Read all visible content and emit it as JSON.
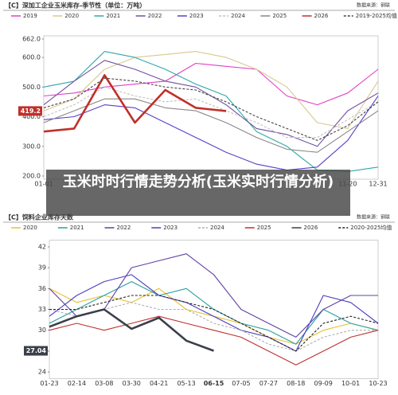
{
  "overlay_title": "玉米时时行情走势分析(玉米实时行情分析)",
  "chart_data": [
    {
      "type": "line",
      "title": "【C】深加工企业玉米库存-季节性（单位：万吨）",
      "source": "数据来源：钢联",
      "categories": [
        "01-01",
        null,
        null,
        null,
        null,
        null,
        null,
        null,
        null,
        null,
        "11-20",
        "12-31"
      ],
      "ylim": [
        200,
        662
      ],
      "yticks": [
        {
          "value": 200,
          "label": "200.0"
        },
        {
          "value": 300,
          "label": "300.0"
        },
        {
          "value": 400,
          "label": "400.0"
        },
        {
          "value": 500,
          "label": "500.0"
        },
        {
          "value": 600,
          "label": "600.0"
        },
        {
          "value": 662,
          "label": "662.0"
        }
      ],
      "grid": false,
      "series": [
        {
          "name": "2019",
          "color": "#e040c8",
          "values": [
            470,
            480,
            500,
            510,
            520,
            580,
            570,
            560,
            470,
            440,
            480,
            560
          ]
        },
        {
          "name": "2020",
          "color": "#d8c890",
          "values": [
            420,
            460,
            560,
            600,
            610,
            620,
            600,
            560,
            500,
            380,
            360,
            520
          ]
        },
        {
          "name": "2021",
          "color": "#30a8a8",
          "values": [
            500,
            520,
            620,
            600,
            560,
            510,
            470,
            350,
            300,
            220,
            215,
            230
          ]
        },
        {
          "name": "2022",
          "color": "#7050a0",
          "values": [
            440,
            520,
            590,
            560,
            520,
            500,
            440,
            360,
            340,
            300,
            420,
            480
          ]
        },
        {
          "name": "2023",
          "color": "#5a3ec8",
          "values": [
            390,
            400,
            440,
            430,
            380,
            330,
            280,
            240,
            220,
            230,
            320,
            470
          ]
        },
        {
          "name": "2024",
          "color": "#c0c0c0",
          "style": "dashed",
          "values": [
            400,
            440,
            500,
            470,
            450,
            460,
            420,
            380,
            330,
            330,
            390,
            450
          ]
        },
        {
          "name": "2025",
          "color": "#888888",
          "values": [
            380,
            420,
            460,
            460,
            430,
            420,
            380,
            330,
            290,
            280,
            350,
            420
          ]
        },
        {
          "name": "2026",
          "color": "#c0302a",
          "highlight": true,
          "values": [
            350,
            360,
            540,
            380,
            490,
            430,
            419.2,
            null,
            null,
            null,
            null,
            null
          ]
        },
        {
          "name": "2019-2025均值",
          "color": "#444444",
          "style": "dashed",
          "values": [
            430,
            460,
            530,
            520,
            500,
            490,
            450,
            400,
            360,
            320,
            370,
            450
          ]
        }
      ]
    },
    {
      "type": "line",
      "title": "【C】饲料企业库存天数",
      "source": "数据来源：钢联",
      "categories": [
        "01-23",
        "02-14",
        "03-08",
        "03-30",
        "04-21",
        "05-13",
        "06-15",
        "07-05",
        "07-27",
        "08-18",
        "09-09",
        "10-01",
        "10-23"
      ],
      "ylim": [
        23.5,
        42.5
      ],
      "yticks": [
        24,
        27,
        30,
        33,
        36,
        39,
        42
      ],
      "grid": false,
      "series": [
        {
          "name": "2020",
          "color": "#e8c030",
          "values": [
            36,
            34,
            35,
            34,
            36,
            33,
            32,
            31,
            29,
            28,
            30,
            31,
            30
          ]
        },
        {
          "name": "2021",
          "color": "#2aa0a0",
          "values": [
            31,
            33,
            35,
            37,
            35,
            36,
            33,
            31,
            30,
            28,
            33,
            31,
            30
          ]
        },
        {
          "name": "2022",
          "color": "#6040a0",
          "values": [
            36,
            32,
            33,
            39,
            40,
            41,
            38,
            33,
            31,
            29,
            33,
            35,
            35
          ]
        },
        {
          "name": "2023",
          "color": "#4a3ec0",
          "values": [
            32,
            35,
            37,
            38,
            35,
            34,
            32,
            30,
            29,
            27,
            35,
            34,
            31
          ]
        },
        {
          "name": "2024",
          "color": "#b0b0b0",
          "style": "dashed",
          "values": [
            33,
            32,
            33,
            34,
            33,
            33,
            31,
            30,
            28,
            27,
            29,
            30,
            30
          ]
        },
        {
          "name": "2025",
          "color": "#c03030",
          "values": [
            30,
            31,
            30,
            31,
            32,
            31,
            30,
            29,
            27,
            25,
            27,
            29,
            30
          ]
        },
        {
          "name": "2026",
          "color": "#3a3f4a",
          "highlight": true,
          "values": [
            30.5,
            32,
            33,
            30.2,
            31.8,
            28.5,
            27.04,
            null,
            null,
            null,
            null,
            null,
            null
          ]
        },
        {
          "name": "2020-2025均值",
          "color": "#222222",
          "style": "dashed",
          "values": [
            33,
            33,
            34,
            35,
            35,
            34,
            33,
            31,
            29,
            27,
            31,
            32,
            31
          ]
        }
      ]
    }
  ]
}
